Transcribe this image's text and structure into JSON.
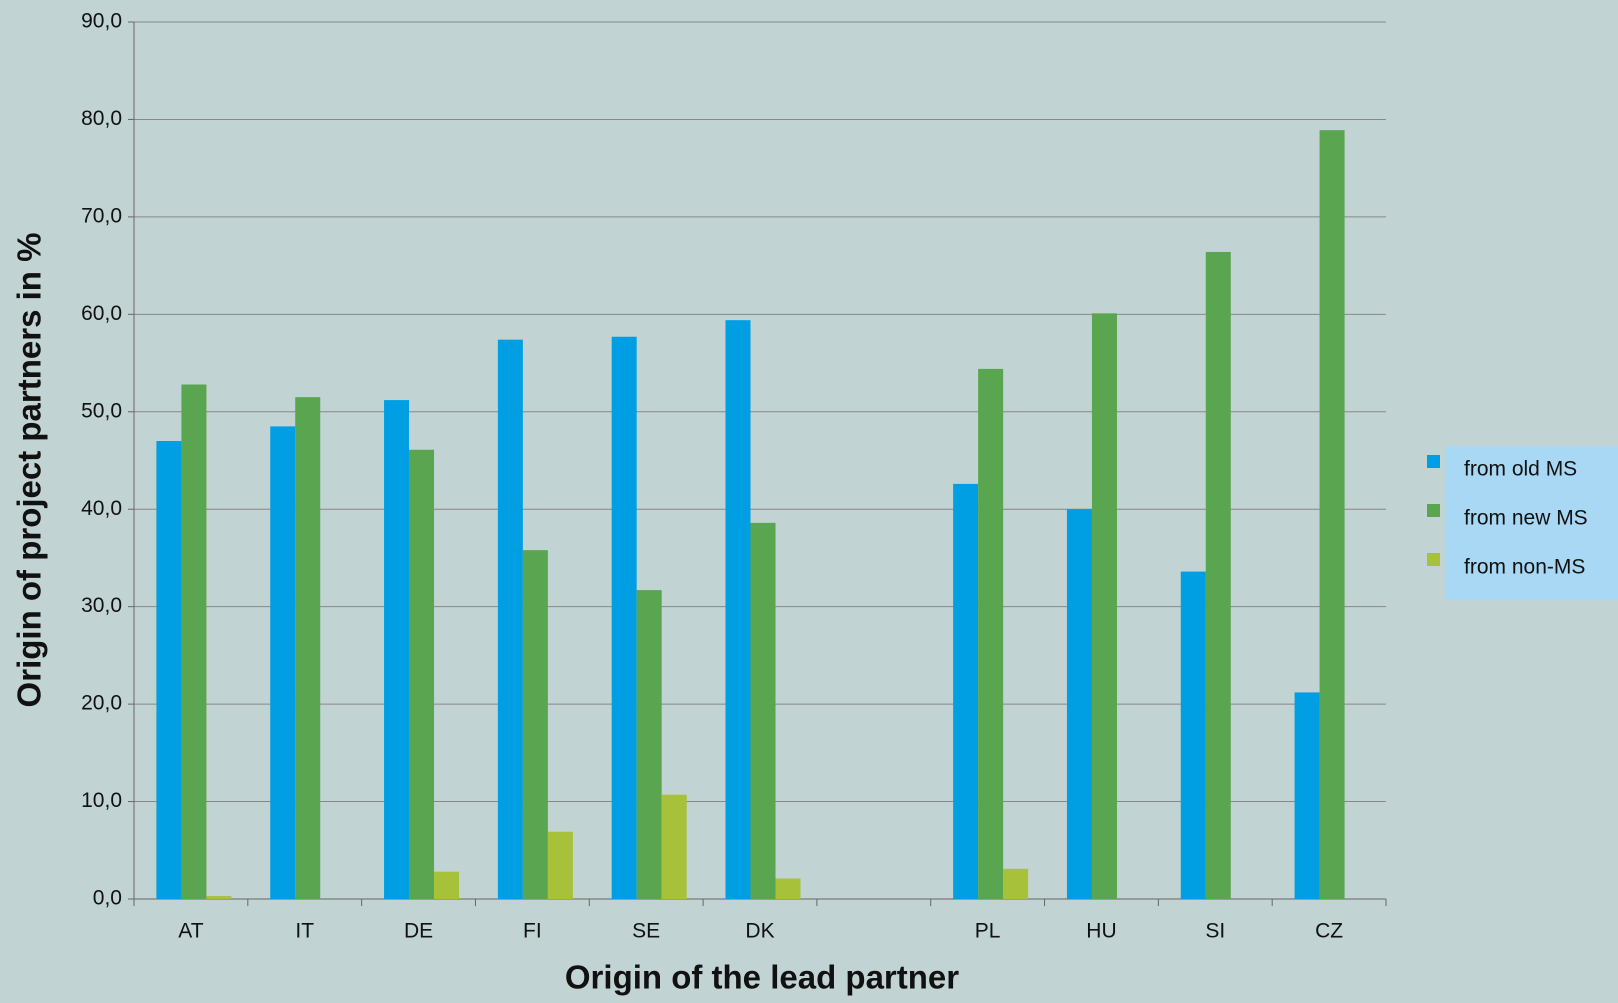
{
  "chart_data": {
    "type": "bar",
    "x_label": "Origin of the lead partner",
    "y_label": "Origin of project partners in %",
    "categories": [
      "AT",
      "IT",
      "DE",
      "FI",
      "SE",
      "DK",
      null,
      "PL",
      "HU",
      "SI",
      "CZ"
    ],
    "series": [
      {
        "name": "from old MS",
        "color": "#009fe3",
        "values": [
          47.0,
          48.5,
          51.2,
          57.4,
          57.7,
          59.4,
          null,
          42.6,
          40.0,
          33.6,
          21.2
        ]
      },
      {
        "name": "from new MS",
        "color": "#5aa54f",
        "values": [
          52.8,
          51.5,
          46.1,
          35.8,
          31.7,
          38.6,
          null,
          54.4,
          60.1,
          66.4,
          78.9
        ]
      },
      {
        "name": "from non-MS",
        "color": "#a7c13a",
        "values": [
          0.3,
          0,
          2.8,
          6.9,
          10.7,
          2.1,
          null,
          3.1,
          0,
          0,
          0
        ]
      }
    ],
    "ylim": [
      0,
      90
    ],
    "yticks": [
      {
        "value": 0,
        "label": "0,0"
      },
      {
        "value": 10,
        "label": "10,0"
      },
      {
        "value": 20,
        "label": "20,0"
      },
      {
        "value": 30,
        "label": "30,0"
      },
      {
        "value": 40,
        "label": "40,0"
      },
      {
        "value": 50,
        "label": "50,0"
      },
      {
        "value": 60,
        "label": "60,0"
      },
      {
        "value": 70,
        "label": "70,0"
      },
      {
        "value": 80,
        "label": "80,0"
      },
      {
        "value": 90,
        "label": "90,0"
      }
    ],
    "grid": true,
    "legend": "right"
  }
}
